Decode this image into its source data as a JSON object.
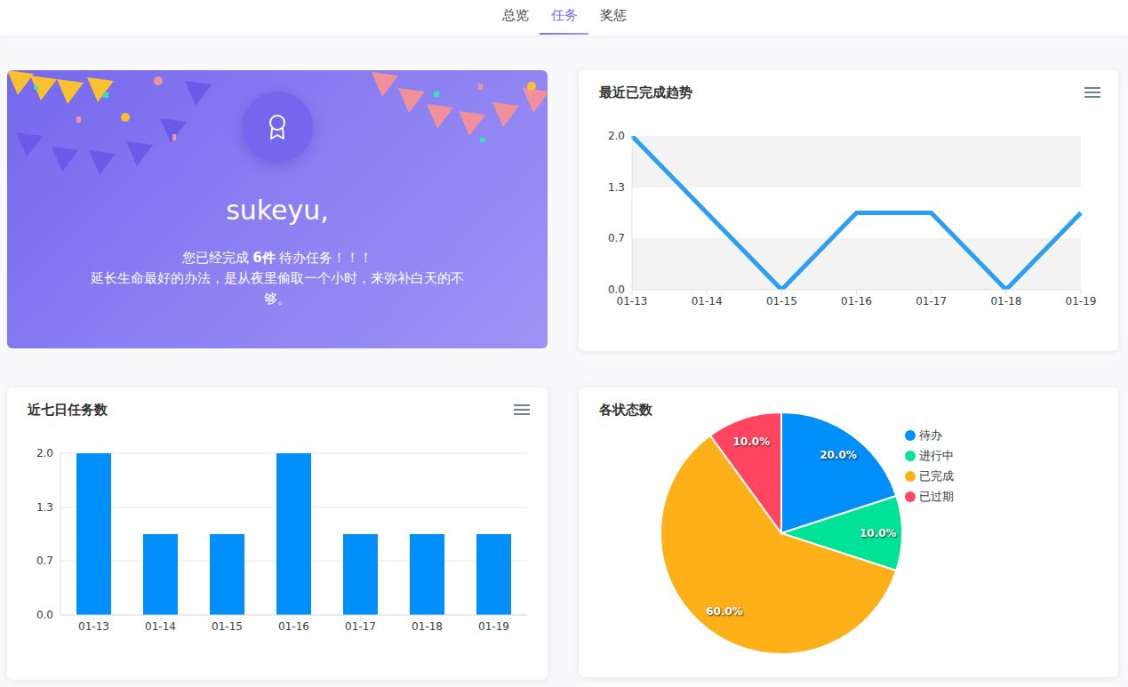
{
  "tabs": {
    "items": [
      "总览",
      "任务",
      "奖惩"
    ],
    "active": "任务"
  },
  "welcome": {
    "name": "sukeyu,",
    "message": {
      "prefix": "您已经完成 ",
      "highlight": "6件",
      "suffix": " 待办任务！！！"
    },
    "quote": "延长生命最好的办法，是从夜里偷取一个小时，来弥补白天的不够。"
  },
  "chart_data": [
    {
      "type": "line",
      "title": "最近已完成趋势",
      "categories": [
        "01-13",
        "01-14",
        "01-15",
        "01-16",
        "01-17",
        "01-18",
        "01-19"
      ],
      "values": [
        2,
        1,
        0,
        1,
        1,
        0,
        1
      ],
      "color": "#2b9ff4",
      "ylim": [
        0,
        2
      ],
      "yticks": [
        {
          "value": 0,
          "label": "0.0"
        },
        {
          "value": 0.67,
          "label": "0.7"
        },
        {
          "value": 1.33,
          "label": "1.3"
        },
        {
          "value": 2,
          "label": "2.0"
        }
      ],
      "grid": true
    },
    {
      "type": "bar",
      "title": "近七日任务数",
      "categories": [
        "01-13",
        "01-14",
        "01-15",
        "01-16",
        "01-17",
        "01-18",
        "01-19"
      ],
      "values": [
        2,
        1,
        1,
        2,
        1,
        1,
        1
      ],
      "color": "#008ffb",
      "ylim": [
        0,
        2
      ],
      "yticks": [
        {
          "value": 0,
          "label": "0.0"
        },
        {
          "value": 0.67,
          "label": "0.7"
        },
        {
          "value": 1.33,
          "label": "1.3"
        },
        {
          "value": 2,
          "label": "2.0"
        }
      ],
      "grid": true
    },
    {
      "type": "pie",
      "title": "各状态数",
      "categories": [
        "待办",
        "进行中",
        "已完成",
        "已过期"
      ],
      "values": [
        20,
        10,
        60,
        10
      ],
      "value_labels": [
        "20.0%",
        "10.0%",
        "60.0%",
        "10.0%"
      ],
      "colors": [
        "#008ffb",
        "#00e396",
        "#feb019",
        "#ff4560"
      ],
      "data_labels": true,
      "legend": "right"
    }
  ]
}
